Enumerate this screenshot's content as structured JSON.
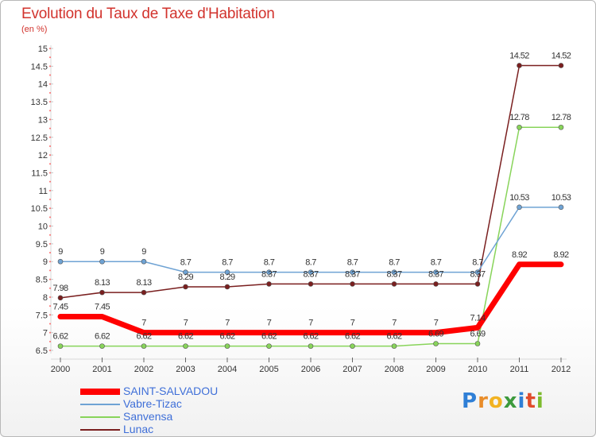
{
  "header": {
    "title": "Evolution du Taux de Taxe d'Habitation",
    "subtitle": "(en %)"
  },
  "logo": {
    "text": "Proxiti"
  },
  "chart_data": {
    "type": "line",
    "title": "Evolution du Taux de Taxe d'Habitation",
    "subtitle": "(en %)",
    "xlabel": "",
    "ylabel": "",
    "x": [
      "2000",
      "2001",
      "2002",
      "2003",
      "2004",
      "2005",
      "2006",
      "2007",
      "2008",
      "2009",
      "2010",
      "2011",
      "2012"
    ],
    "ylim": [
      6.5,
      15
    ],
    "y_ticks": [
      6.5,
      7,
      7.5,
      8,
      8.5,
      9,
      9.5,
      10,
      10.5,
      11,
      11.5,
      12,
      12.5,
      13,
      13.5,
      14,
      14.5,
      15
    ],
    "grid": false,
    "legend_position": "bottom-left",
    "series": [
      {
        "name": "Lunac",
        "color": "#7a1f1f",
        "values": [
          7.98,
          8.13,
          8.13,
          8.29,
          8.29,
          8.37,
          8.37,
          8.37,
          8.37,
          8.37,
          8.37,
          14.52,
          14.52
        ],
        "labels": [
          "7.98",
          "8.13",
          "8.13",
          "8.29",
          "8.29",
          "8.37",
          "8.37",
          "8.37",
          "8.37",
          "8.37",
          "8.37",
          "14.52",
          "14.52"
        ]
      },
      {
        "name": "Sanvensa",
        "color": "#88d45a",
        "values": [
          6.62,
          6.62,
          6.62,
          6.62,
          6.62,
          6.62,
          6.62,
          6.62,
          6.62,
          6.69,
          6.69,
          12.78,
          12.78
        ],
        "labels": [
          "6.62",
          "6.62",
          "6.62",
          "6.62",
          "6.62",
          "6.62",
          "6.62",
          "6.62",
          "6.62",
          "6.69",
          "6.69",
          "12.78",
          "12.78"
        ]
      },
      {
        "name": "Vabre-Tizac",
        "color": "#6fa3d4",
        "values": [
          9,
          9,
          9,
          8.7,
          8.7,
          8.7,
          8.7,
          8.7,
          8.7,
          8.7,
          8.7,
          10.53,
          10.53
        ],
        "labels": [
          "9",
          "9",
          "9",
          "8.7",
          "8.7",
          "8.7",
          "8.7",
          "8.7",
          "8.7",
          "8.7",
          "8.7",
          "10.53",
          "10.53"
        ]
      },
      {
        "name": "SAINT-SALVADOU",
        "color": "#ff0000",
        "values": [
          7.45,
          7.45,
          7,
          7,
          7,
          7,
          7,
          7,
          7,
          7,
          7.14,
          8.92,
          8.92
        ],
        "labels": [
          "7.45",
          "7.45",
          "7",
          "7",
          "7",
          "7",
          "7",
          "7",
          "7",
          "7",
          "7.14",
          "8.92",
          "8.92"
        ]
      }
    ],
    "legend": [
      {
        "name": "SAINT-SALVADOU",
        "color": "#ff0000"
      },
      {
        "name": "Vabre-Tizac",
        "color": "#6fa3d4"
      },
      {
        "name": "Sanvensa",
        "color": "#88d45a"
      },
      {
        "name": "Lunac",
        "color": "#7a1f1f"
      }
    ]
  }
}
